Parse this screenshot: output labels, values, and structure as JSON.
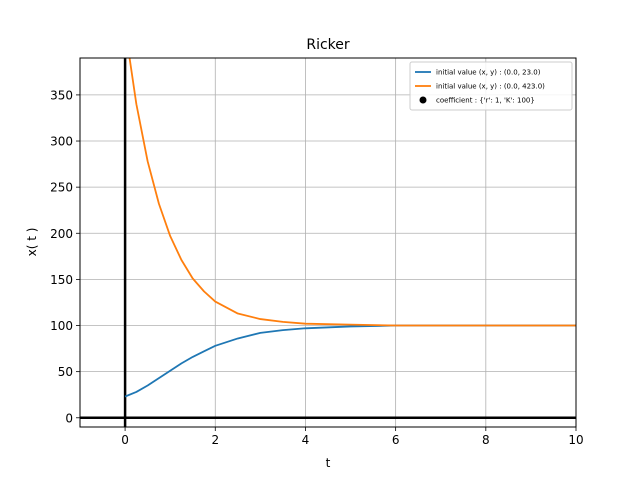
{
  "chart_data": {
    "type": "line",
    "title": "Ricker",
    "xlabel": "t",
    "ylabel": "x( t )",
    "xlim": [
      -1,
      10
    ],
    "ylim": [
      -10,
      390
    ],
    "xticks": [
      0,
      2,
      4,
      6,
      8,
      10
    ],
    "yticks": [
      0,
      50,
      100,
      150,
      200,
      250,
      300,
      350
    ],
    "grid": true,
    "legend_position": "top-right",
    "series": [
      {
        "name": "initial value (x, y) : (0.0, 23.0)",
        "color": "#1f77b4",
        "x": [
          0,
          0.25,
          0.5,
          0.75,
          1.0,
          1.25,
          1.5,
          1.75,
          2.0,
          2.5,
          3.0,
          3.5,
          4.0,
          5.0,
          6.0,
          7.0,
          8.0,
          9.0,
          10.0
        ],
        "y": [
          23,
          28,
          35,
          43,
          51,
          59,
          66,
          72,
          78,
          86,
          92,
          95,
          97,
          99,
          100,
          100,
          100,
          100,
          100
        ]
      },
      {
        "name": "initial value (x, y) : (0.0, 423.0)",
        "color": "#ff7f0e",
        "x": [
          0,
          0.25,
          0.5,
          0.75,
          1.0,
          1.25,
          1.5,
          1.75,
          2.0,
          2.5,
          3.0,
          3.5,
          4.0,
          5.0,
          6.0,
          7.0,
          8.0,
          9.0,
          10.0
        ],
        "y": [
          423,
          340,
          278,
          232,
          197,
          171,
          151,
          137,
          126,
          113,
          107,
          104,
          102,
          101,
          100,
          100,
          100,
          100,
          100
        ]
      }
    ],
    "points": [
      {
        "name": "coefficient : {'r': 1, 'K': 100}",
        "color": "#000000"
      }
    ]
  }
}
